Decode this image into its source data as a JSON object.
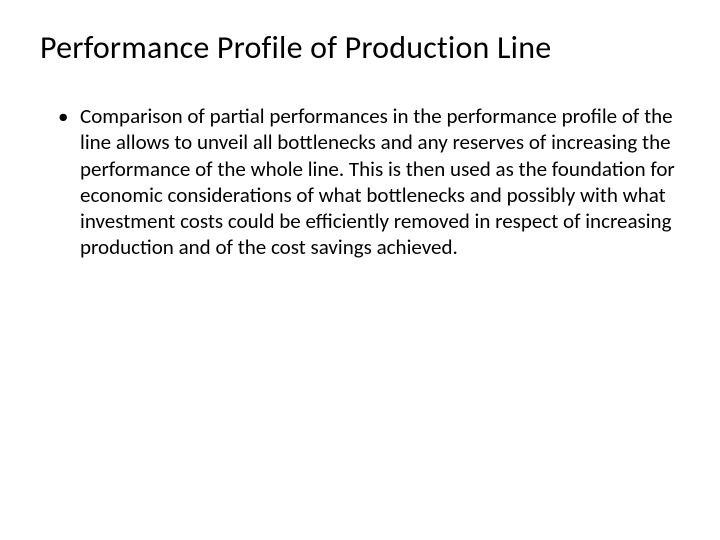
{
  "slide": {
    "title": "Performance Profile of Production Line",
    "bullets": [
      {
        "text": "Comparison of partial performances in the performance profile of the line allows to unveil all bottlenecks and any reserves of increasing the performance of the whole line. This is then used as the foundation for economic considerations of what bottlenecks and possibly with what investment costs could be efficiently removed in respect of increasing production and of the cost savings achieved."
      }
    ],
    "background_color": "#ffffff",
    "title_fontsize": 32,
    "body_fontsize": 21,
    "text_color": "#000000"
  }
}
